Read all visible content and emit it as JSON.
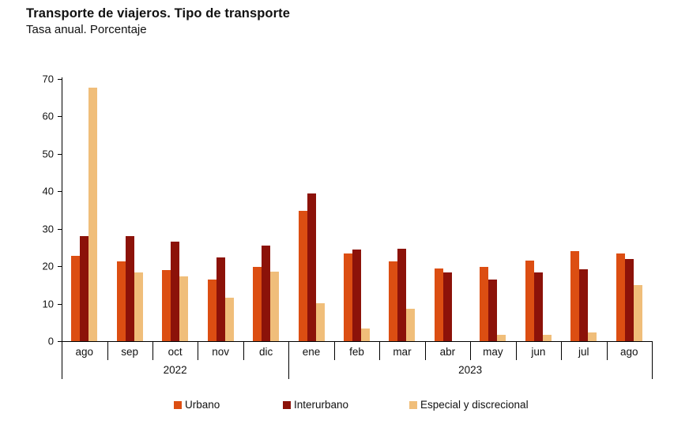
{
  "chart_data": {
    "type": "bar",
    "title": "Transporte de viajeros. Tipo de transporte",
    "subtitle": "Tasa anual. Porcentaje",
    "categories": [
      "ago",
      "sep",
      "oct",
      "nov",
      "dic",
      "ene",
      "feb",
      "mar",
      "abr",
      "may",
      "jun",
      "jul",
      "ago"
    ],
    "year_groups": [
      {
        "label": "2022",
        "span": 5
      },
      {
        "label": "2023",
        "span": 8
      }
    ],
    "series": [
      {
        "name": "Urbano",
        "color": "#DC4E12",
        "values": [
          22.7,
          21.4,
          19.0,
          16.4,
          19.9,
          34.9,
          23.4,
          21.3,
          19.5,
          19.8,
          21.5,
          24.0,
          23.5
        ]
      },
      {
        "name": "Interurbano",
        "color": "#8C1209",
        "values": [
          28.1,
          28.0,
          26.5,
          22.4,
          25.6,
          39.5,
          24.4,
          24.6,
          18.4,
          16.4,
          18.3,
          19.2,
          22.0
        ]
      },
      {
        "name": "Especial y discrecional",
        "color": "#F0BE7A",
        "values": [
          67.6,
          18.4,
          17.2,
          11.6,
          18.5,
          10.1,
          3.4,
          8.7,
          0,
          1.7,
          1.7,
          2.3,
          15.0
        ]
      }
    ],
    "ylim": [
      0,
      70
    ],
    "yticks": [
      0,
      10,
      20,
      30,
      40,
      50,
      60,
      70
    ],
    "grid": false,
    "legend_position": "bottom"
  }
}
